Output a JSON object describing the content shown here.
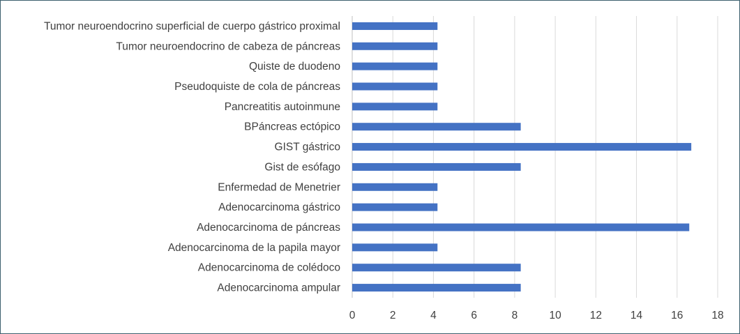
{
  "chart_data": {
    "type": "bar",
    "orientation": "horizontal",
    "categories": [
      "Tumor neuroendocrino superficial de cuerpo gástrico proximal",
      "Tumor neuroendocrino de cabeza de páncreas",
      "Quiste de duodeno",
      "Pseudoquiste de cola de páncreas",
      "Pancreatitis autoinmune",
      "BPáncreas ectópico",
      "GIST gástrico",
      "Gist de esófago",
      "Enfermedad de Menetrier",
      "Adenocarcinoma gástrico",
      "Adenocarcinoma de páncreas",
      "Adenocarcinoma de la papila mayor",
      "Adenocarcinoma de colédoco",
      "Adenocarcinoma ampular"
    ],
    "values": [
      4.2,
      4.2,
      4.2,
      4.2,
      4.2,
      8.3,
      16.7,
      8.3,
      4.2,
      4.2,
      16.6,
      4.2,
      8.3,
      8.3
    ],
    "x_ticks": [
      "0",
      "2",
      "4",
      "6",
      "8",
      "10",
      "12",
      "14",
      "16",
      "18"
    ],
    "xlim": [
      0,
      18
    ],
    "grid": true,
    "bar_color": "#4472c4",
    "title": "",
    "xlabel": "",
    "ylabel": ""
  },
  "colors": {
    "frame_border": "#3c5f6e",
    "grid": "#d9d9d9",
    "text": "#404040"
  }
}
